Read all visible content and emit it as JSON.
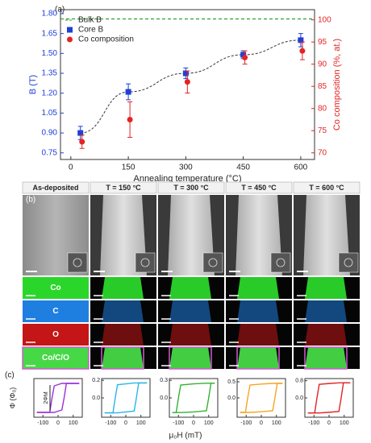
{
  "panel_labels": [
    "(a)",
    "(b)",
    "(c)"
  ],
  "chart_data": [
    {
      "type": "scatter",
      "x": [
        25,
        150,
        300,
        450,
        600
      ],
      "xlim": [
        -27,
        636
      ],
      "xticks": [
        0,
        150,
        300,
        450,
        600
      ],
      "ylim": [
        0.7,
        1.83
      ],
      "yticks": [
        0.75,
        {
          "value": 0.9,
          "label": "0.90"
        },
        1.05,
        {
          "value": 1.2,
          "label": "1.20"
        },
        1.35,
        {
          "value": 1.5,
          "label": "1.50"
        },
        1.65,
        {
          "value": 1.8,
          "label": "1.80"
        }
      ],
      "y2lim": [
        68.5,
        102.3
      ],
      "y2ticks": [
        70,
        75,
        80,
        85,
        90,
        95,
        100
      ],
      "x_label": "Annealing temperature (°C)",
      "y_label": "B (T)",
      "y2_label": "Co composition (%, at.)",
      "reference": {
        "name": "Bulk B",
        "value": 1.76,
        "color": "#2ca02c"
      },
      "series": [
        {
          "name": "Core B",
          "color": "#1f3fd6",
          "marker": "square",
          "values": [
            0.9,
            1.21,
            1.35,
            1.49,
            1.6
          ],
          "errors": [
            0.05,
            0.06,
            0.04,
            0.03,
            0.05
          ]
        },
        {
          "name": "Co composition",
          "color": "#e32424",
          "marker": "circle",
          "axis": "y2",
          "values": [
            72.5,
            77.5,
            86,
            91.5,
            93
          ],
          "errors": [
            1.5,
            4,
            2.5,
            1.5,
            2
          ]
        }
      ],
      "legend": "upper left"
    },
    {
      "type": "line",
      "color": "#9b30d9",
      "annotation": "2ΦM",
      "y_label": "Φ (Φ₀)",
      "x": [
        -140,
        -55,
        -40,
        -25,
        0,
        25,
        40,
        55,
        140
      ],
      "xlim": [
        -160,
        160
      ],
      "xticks": [
        -100,
        0,
        100
      ],
      "ylim": [
        -0.08,
        0.08
      ],
      "series": [
        {
          "values": [
            -0.06,
            -0.06,
            0,
            0.05,
            0.055,
            0.06,
            0.06,
            0.06,
            0.06
          ]
        },
        {
          "values": [
            -0.06,
            -0.06,
            -0.06,
            -0.06,
            -0.055,
            -0.05,
            0,
            0.06,
            0.06
          ]
        }
      ]
    },
    {
      "type": "line",
      "color": "#29b6e6",
      "x": [
        -140,
        -85,
        -70,
        -55,
        0,
        55,
        70,
        85,
        140
      ],
      "xlim": [
        -160,
        160
      ],
      "xticks": [
        -100,
        0,
        100
      ],
      "ylim": [
        -0.22,
        0.22
      ],
      "yticks": [
        {
          "value": 0,
          "label": "0.0"
        },
        0.2
      ],
      "series": [
        {
          "values": [
            -0.17,
            -0.17,
            0,
            0.15,
            0.16,
            0.17,
            0.17,
            0.17,
            0.17
          ]
        },
        {
          "values": [
            -0.17,
            -0.17,
            -0.17,
            -0.17,
            -0.16,
            -0.15,
            0,
            0.17,
            0.17
          ]
        }
      ]
    },
    {
      "type": "line",
      "color": "#33b233",
      "x": [
        -140,
        -115,
        -100,
        -85,
        0,
        85,
        100,
        115,
        140
      ],
      "xlim": [
        -160,
        160
      ],
      "xticks": [
        -100,
        0,
        100
      ],
      "ylim": [
        -0.33,
        0.33
      ],
      "yticks": [
        {
          "value": 0,
          "label": "0.0"
        },
        0.3
      ],
      "series": [
        {
          "values": [
            -0.25,
            -0.25,
            0,
            0.22,
            0.24,
            0.25,
            0.25,
            0.25,
            0.25
          ]
        },
        {
          "values": [
            -0.25,
            -0.25,
            -0.25,
            -0.25,
            -0.24,
            -0.22,
            0,
            0.25,
            0.25
          ]
        }
      ]
    },
    {
      "type": "line",
      "color": "#f5a623",
      "x": [
        -140,
        -105,
        -90,
        -75,
        0,
        75,
        90,
        105,
        140
      ],
      "xlim": [
        -160,
        160
      ],
      "xticks": [
        -100,
        0,
        100
      ],
      "ylim": [
        -0.6,
        0.6
      ],
      "yticks": [
        {
          "value": 0,
          "label": "0.0"
        },
        0.5
      ],
      "series": [
        {
          "values": [
            -0.45,
            -0.45,
            0,
            0.4,
            0.43,
            0.45,
            0.45,
            0.45,
            0.45
          ]
        },
        {
          "values": [
            -0.45,
            -0.45,
            -0.45,
            -0.45,
            -0.43,
            -0.4,
            0,
            0.45,
            0.45
          ]
        }
      ]
    },
    {
      "type": "line",
      "color": "#e32424",
      "x_label": "μ₀H (mT)",
      "x": [
        -140,
        -95,
        -80,
        -65,
        0,
        65,
        80,
        95,
        140
      ],
      "xlim": [
        -160,
        160
      ],
      "xticks": [
        -100,
        0,
        100
      ],
      "ylim": [
        -0.9,
        0.9
      ],
      "yticks": [
        {
          "value": 0,
          "label": "0.0"
        },
        0.8
      ],
      "series": [
        {
          "values": [
            -0.7,
            -0.7,
            0,
            0.63,
            0.67,
            0.7,
            0.7,
            0.7,
            0.7
          ]
        },
        {
          "values": [
            -0.7,
            -0.7,
            -0.7,
            -0.7,
            -0.67,
            -0.63,
            0,
            0.7,
            0.7
          ]
        }
      ]
    }
  ],
  "panel_b": {
    "columns": [
      "As-deposited",
      "T = 150 °C",
      "T = 300 °C",
      "T = 450 °C",
      "T = 600 °C"
    ],
    "rows": [
      "Co",
      "C",
      "O",
      "Co/C/O"
    ]
  }
}
